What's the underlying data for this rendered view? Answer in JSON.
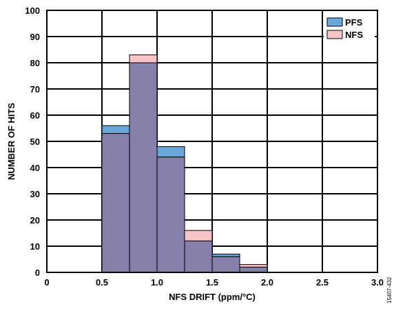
{
  "chart_data": {
    "type": "bar",
    "xlabel": "NFS DRIFT (ppm/°C)",
    "ylabel": "NUMBER OF HITS",
    "xlim": [
      0,
      3.0
    ],
    "ylim": [
      0,
      100
    ],
    "x_ticks": [
      0,
      0.5,
      1.0,
      1.5,
      2.0,
      2.5,
      3.0
    ],
    "x_tick_labels": [
      "0",
      "0.5",
      "1.0",
      "1.5",
      "2.0",
      "2.5",
      "3.0"
    ],
    "y_ticks": [
      0,
      10,
      20,
      30,
      40,
      50,
      60,
      70,
      80,
      90,
      100
    ],
    "y_tick_labels": [
      "0",
      "10",
      "20",
      "30",
      "40",
      "50",
      "60",
      "70",
      "80",
      "90",
      "100"
    ],
    "grid": true,
    "legend_position": "top-right",
    "bins": [
      [
        0.5,
        0.75
      ],
      [
        0.75,
        1.0
      ],
      [
        1.0,
        1.25
      ],
      [
        1.25,
        1.5
      ],
      [
        1.5,
        1.75
      ],
      [
        1.75,
        2.0
      ]
    ],
    "series": [
      {
        "name": "PFS",
        "color": "#6aa6d8",
        "values": [
          56,
          80,
          48,
          12,
          7,
          2
        ]
      },
      {
        "name": "NFS",
        "color": "#f7c4c8",
        "values": [
          53,
          83,
          44,
          16,
          6,
          3
        ]
      }
    ],
    "overlap_color": "#8580aa",
    "annotation": "15407-432"
  }
}
